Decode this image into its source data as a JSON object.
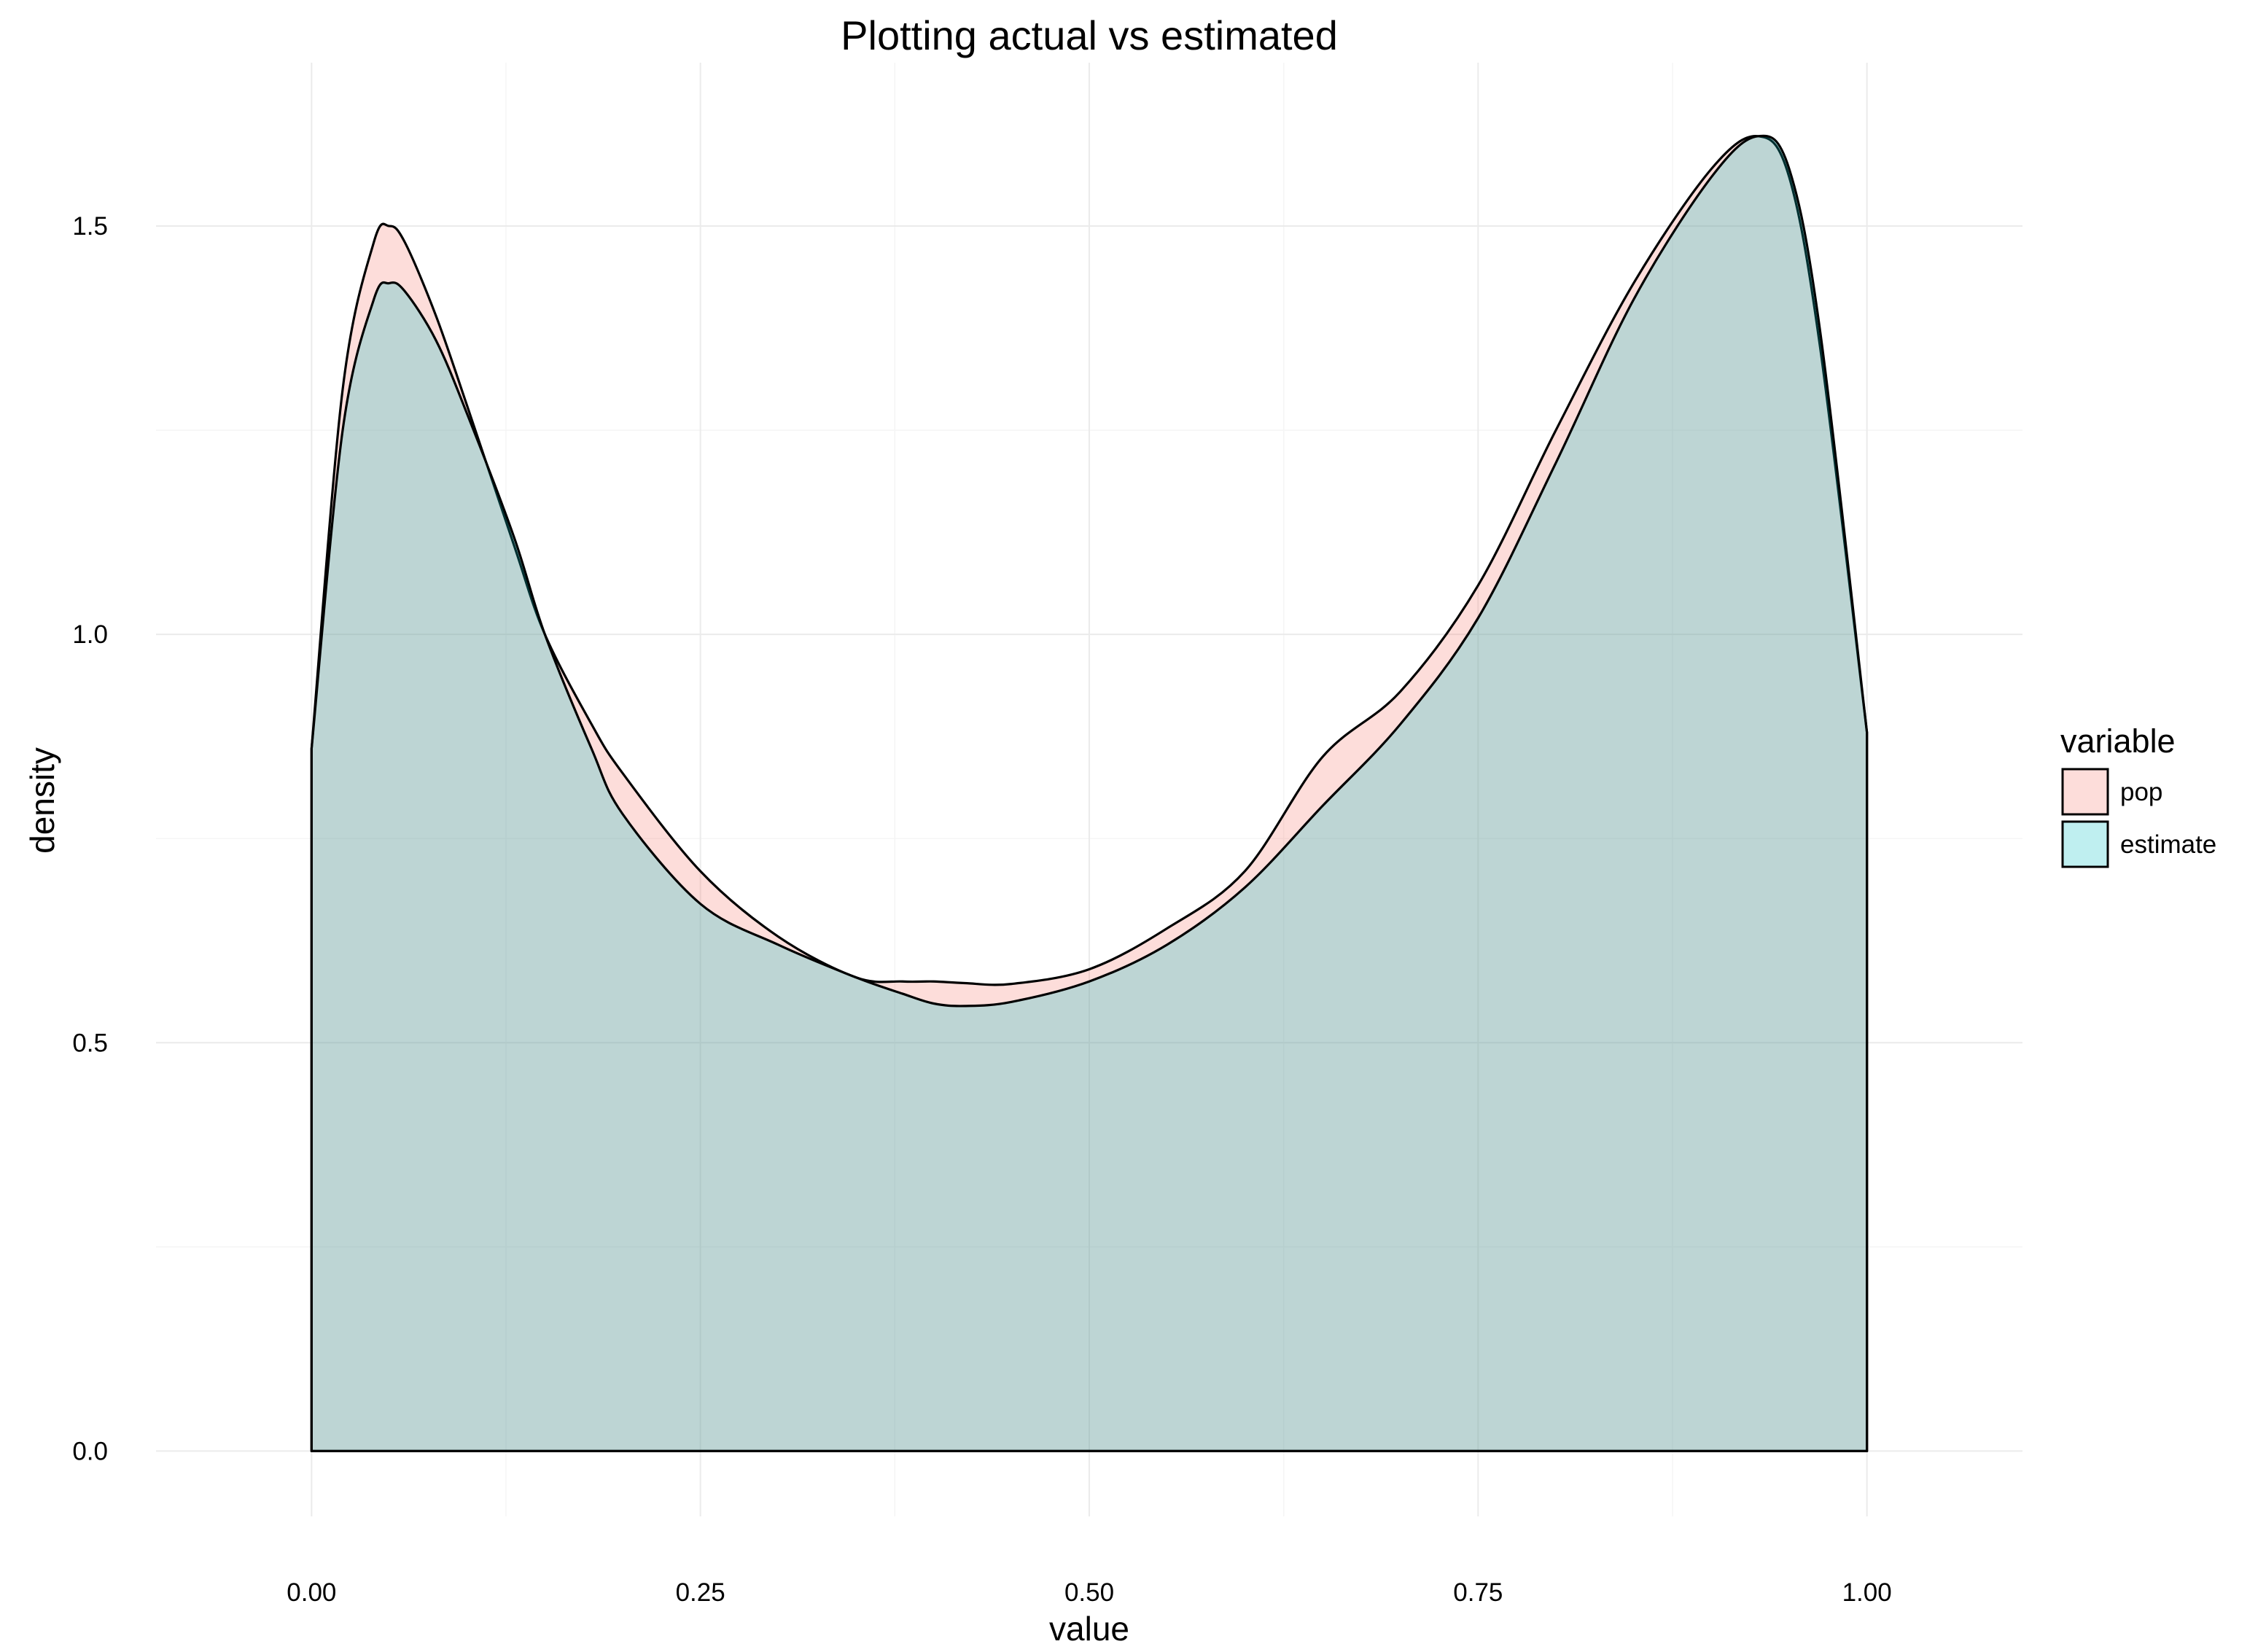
{
  "chart_data": {
    "type": "area",
    "title": "Plotting actual vs estimated",
    "xlabel": "value",
    "ylabel": "density",
    "xlim": [
      -0.1,
      1.1
    ],
    "ylim": [
      -0.08,
      1.7
    ],
    "x_ticks": [
      0.0,
      0.25,
      0.5,
      0.75,
      1.0
    ],
    "x_tick_labels": [
      "0.00",
      "0.25",
      "0.50",
      "0.75",
      "1.00"
    ],
    "y_ticks": [
      0.0,
      0.5,
      1.0,
      1.5
    ],
    "y_tick_labels": [
      "0.0",
      "0.5",
      "1.0",
      "1.5"
    ],
    "grid": true,
    "legend": {
      "title": "variable",
      "position": "right"
    },
    "x": [
      0.0,
      0.02,
      0.04,
      0.05,
      0.06,
      0.08,
      0.1,
      0.13,
      0.15,
      0.18,
      0.2,
      0.25,
      0.3,
      0.35,
      0.38,
      0.4,
      0.42,
      0.45,
      0.5,
      0.55,
      0.6,
      0.65,
      0.7,
      0.75,
      0.8,
      0.85,
      0.9,
      0.93,
      0.95,
      0.97,
      1.0
    ],
    "series": [
      {
        "name": "pop",
        "color": "#F8766D",
        "values": [
          0.86,
          1.3,
          1.48,
          1.5,
          1.48,
          1.39,
          1.28,
          1.11,
          1.0,
          0.89,
          0.83,
          0.71,
          0.63,
          0.58,
          0.575,
          0.575,
          0.573,
          0.572,
          0.59,
          0.64,
          0.71,
          0.85,
          0.93,
          1.06,
          1.25,
          1.43,
          1.57,
          1.61,
          1.56,
          1.35,
          0.88
        ]
      },
      {
        "name": "estimate",
        "color": "#00BFC4",
        "values": [
          0.86,
          1.25,
          1.41,
          1.43,
          1.42,
          1.36,
          1.27,
          1.12,
          1.0,
          0.86,
          0.78,
          0.67,
          0.62,
          0.58,
          0.56,
          0.548,
          0.545,
          0.55,
          0.575,
          0.62,
          0.69,
          0.79,
          0.89,
          1.02,
          1.21,
          1.41,
          1.56,
          1.61,
          1.57,
          1.37,
          0.88
        ]
      }
    ]
  }
}
